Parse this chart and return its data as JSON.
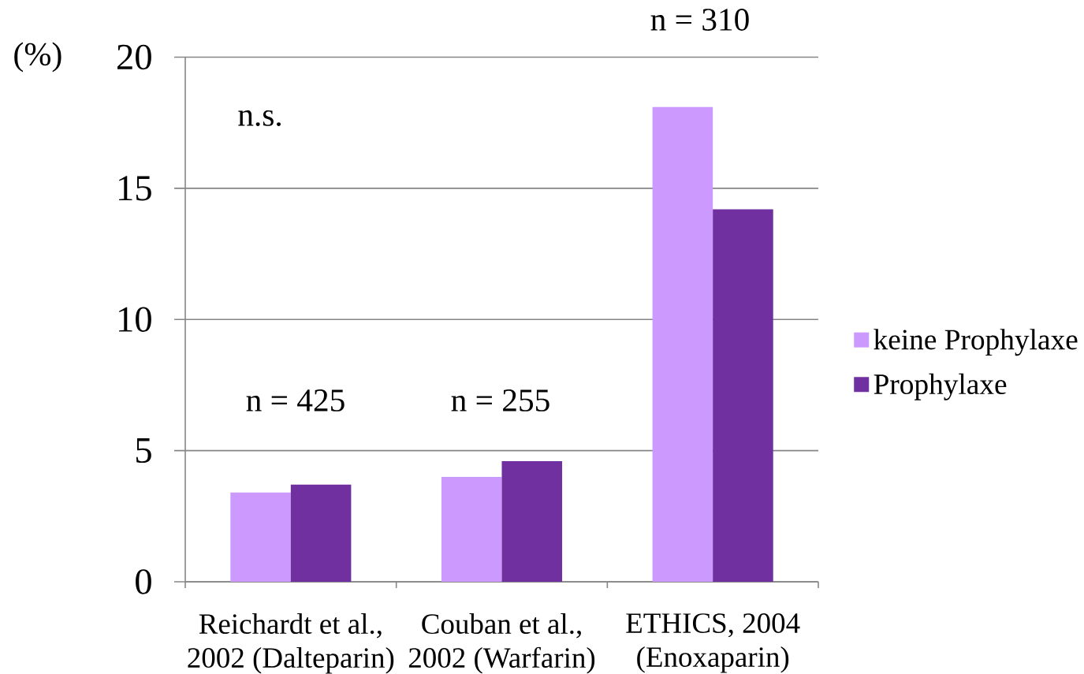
{
  "chart_data": {
    "type": "bar",
    "ylabel": "(%)",
    "categories": [
      "Reichardt et al., 2002 (Dalteparin)",
      "Couban et al., 2002 (Warfarin)",
      "ETHICS, 2004 (Enoxaparin)"
    ],
    "series": [
      {
        "name": "keine Prophylaxe",
        "color": "#cc99ff",
        "values": [
          3.4,
          4.0,
          18.1
        ]
      },
      {
        "name": "Prophylaxe",
        "color": "#7030a0",
        "values": [
          3.7,
          4.6,
          14.2
        ]
      }
    ],
    "ylim": [
      0,
      20
    ],
    "yticks": [
      0,
      5,
      10,
      15,
      20
    ],
    "grid": "y",
    "legend": "right",
    "annotations": [
      "n.s.",
      "n = 425",
      "n = 255",
      "n = 310"
    ]
  }
}
